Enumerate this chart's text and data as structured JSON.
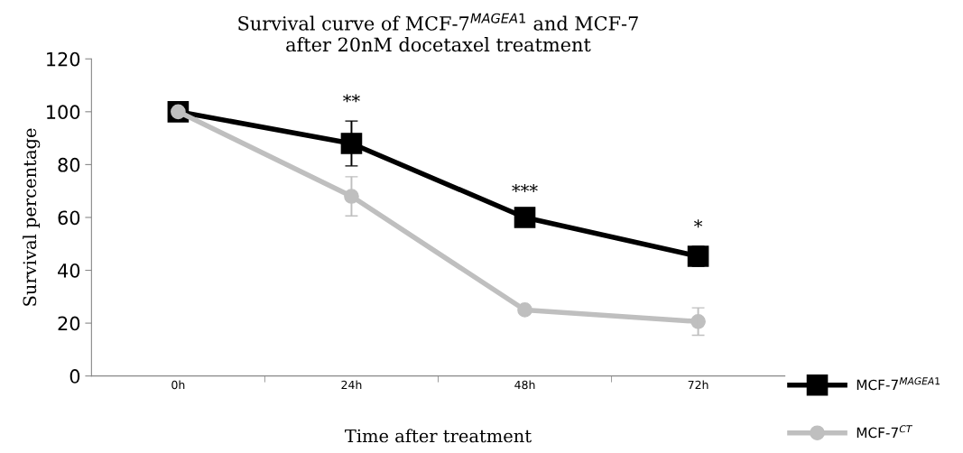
{
  "chart_data": {
    "type": "line",
    "title": "Survival curve of MCF-7$^{MAGEA1}$ and MCF-7\nafter 20nM docetaxel treatment",
    "xlabel": "Time after treatment",
    "ylabel": "Survival percentage",
    "categories": [
      "0h",
      "24h",
      "48h",
      "72h"
    ],
    "series": [
      {
        "name": "MCF-7$^{MAGEA1}$",
        "color": "#000000",
        "marker": "square",
        "values": [
          100,
          88,
          60,
          45.3
        ],
        "errors": [
          null,
          8.5,
          2.5,
          3.8
        ]
      },
      {
        "name": "MCF-7$^{CT}$",
        "color": "#bfbfbf",
        "marker": "circle",
        "values": [
          100,
          68,
          25,
          20.6
        ],
        "errors": [
          null,
          7.4,
          null,
          5.2
        ]
      }
    ],
    "annotations": [
      "**",
      "***",
      "*"
    ],
    "ylim": [
      0,
      120
    ],
    "yticks": [
      0,
      20,
      40,
      60,
      80,
      100,
      120
    ],
    "grid": false,
    "legend": "bottom right",
    "line_style": "solid"
  }
}
